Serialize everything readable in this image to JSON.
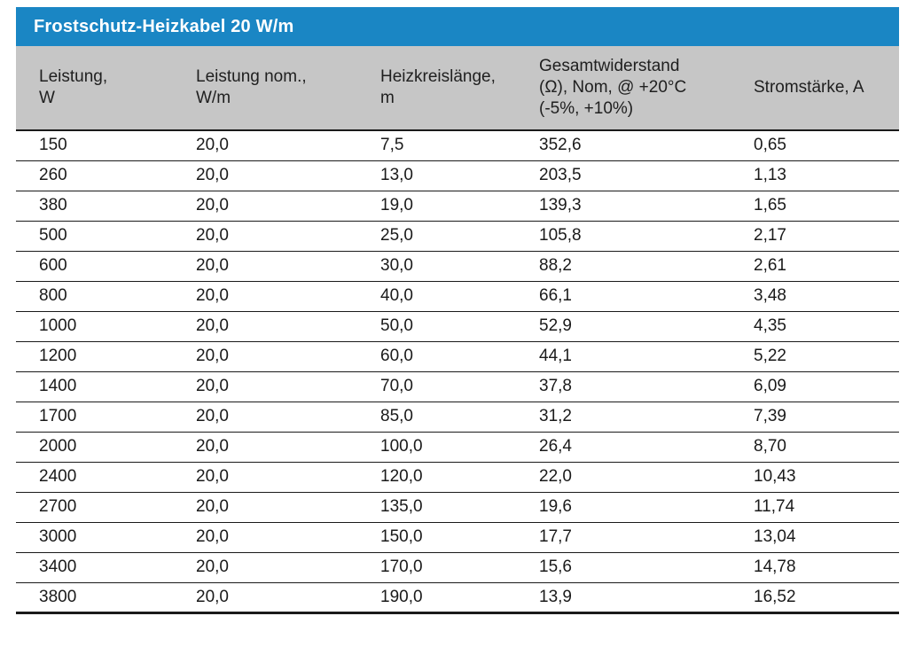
{
  "table": {
    "title": "Frostschutz-Heizkabel 20 W/m",
    "headers": [
      "Leistung,\nW",
      "Leistung nom.,\nW/m",
      "Heizkreislänge,\nm",
      "Gesamtwiderstand\n(Ω), Nom, @ +20°C\n(-5%, +10%)",
      "Stromstärke, A"
    ],
    "rows": [
      [
        "150",
        "20,0",
        "7,5",
        "352,6",
        "0,65"
      ],
      [
        "260",
        "20,0",
        "13,0",
        "203,5",
        "1,13"
      ],
      [
        "380",
        "20,0",
        "19,0",
        "139,3",
        "1,65"
      ],
      [
        "500",
        "20,0",
        "25,0",
        "105,8",
        "2,17"
      ],
      [
        "600",
        "20,0",
        "30,0",
        "88,2",
        "2,61"
      ],
      [
        "800",
        "20,0",
        "40,0",
        "66,1",
        "3,48"
      ],
      [
        "1000",
        "20,0",
        "50,0",
        "52,9",
        "4,35"
      ],
      [
        "1200",
        "20,0",
        "60,0",
        "44,1",
        "5,22"
      ],
      [
        "1400",
        "20,0",
        "70,0",
        "37,8",
        "6,09"
      ],
      [
        "1700",
        "20,0",
        "85,0",
        "31,2",
        "7,39"
      ],
      [
        "2000",
        "20,0",
        "100,0",
        "26,4",
        "8,70"
      ],
      [
        "2400",
        "20,0",
        "120,0",
        "22,0",
        "10,43"
      ],
      [
        "2700",
        "20,0",
        "135,0",
        "19,6",
        "11,74"
      ],
      [
        "3000",
        "20,0",
        "150,0",
        "17,7",
        "13,04"
      ],
      [
        "3400",
        "20,0",
        "170,0",
        "15,6",
        "14,78"
      ],
      [
        "3800",
        "20,0",
        "190,0",
        "13,9",
        "16,52"
      ]
    ]
  },
  "colors": {
    "accent_blue": "#1a86c4",
    "header_gray": "#c6c6c6",
    "line_black": "#1a1a1a",
    "title_text": "#ffffff",
    "body_text": "#1a1a1a"
  }
}
